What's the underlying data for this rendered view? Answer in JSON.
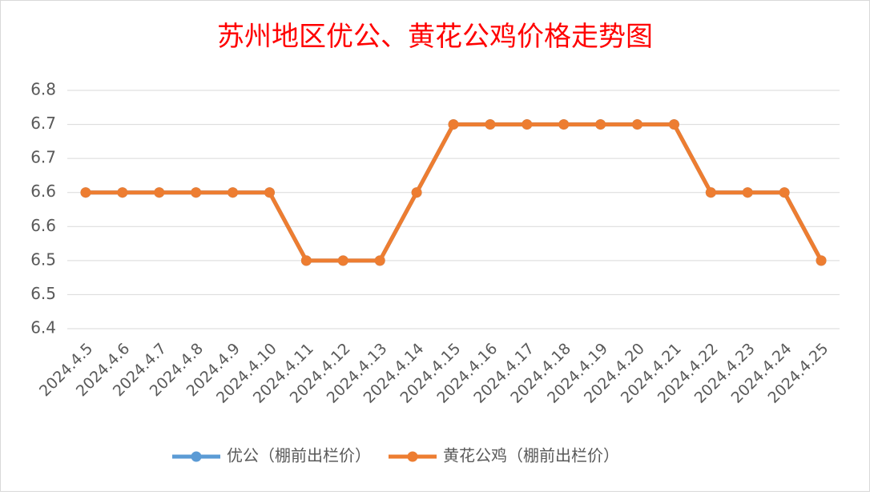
{
  "chart_data": {
    "type": "line",
    "title": "苏州地区优公、黄花公鸡价格走势图",
    "categories": [
      "2024.4.5",
      "2024.4.6",
      "2024.4.7",
      "2024.4.8",
      "2024.4.9",
      "2024.4.10",
      "2024.4.11",
      "2024.4.12",
      "2024.4.13",
      "2024.4.14",
      "2024.4.15",
      "2024.4.16",
      "2024.4.17",
      "2024.4.18",
      "2024.4.19",
      "2024.4.20",
      "2024.4.21",
      "2024.4.22",
      "2024.4.23",
      "2024.4.24",
      "2024.4.25"
    ],
    "series": [
      {
        "name": "优公（棚前出栏价）",
        "color": "#5b9bd5",
        "values": [
          6.6,
          6.6,
          6.6,
          6.6,
          6.6,
          6.6,
          6.5,
          6.5,
          6.5,
          6.6,
          6.7,
          6.7,
          6.7,
          6.7,
          6.7,
          6.7,
          6.7,
          6.6,
          6.6,
          6.6,
          6.5
        ]
      },
      {
        "name": "黄花公鸡（棚前出栏价）",
        "color": "#ed7d31",
        "values": [
          6.6,
          6.6,
          6.6,
          6.6,
          6.6,
          6.6,
          6.5,
          6.5,
          6.5,
          6.6,
          6.7,
          6.7,
          6.7,
          6.7,
          6.7,
          6.7,
          6.7,
          6.6,
          6.6,
          6.6,
          6.5
        ]
      }
    ],
    "ylim": [
      6.4,
      6.75
    ],
    "yticks": [
      6.4,
      {
        "value": 6.45,
        "label": "6.5"
      },
      6.5,
      {
        "value": 6.55,
        "label": "6.6"
      },
      6.6,
      {
        "value": 6.65,
        "label": "6.7"
      },
      6.7,
      {
        "value": 6.75,
        "label": "6.8"
      }
    ],
    "grid": true,
    "legend": "bottom"
  }
}
